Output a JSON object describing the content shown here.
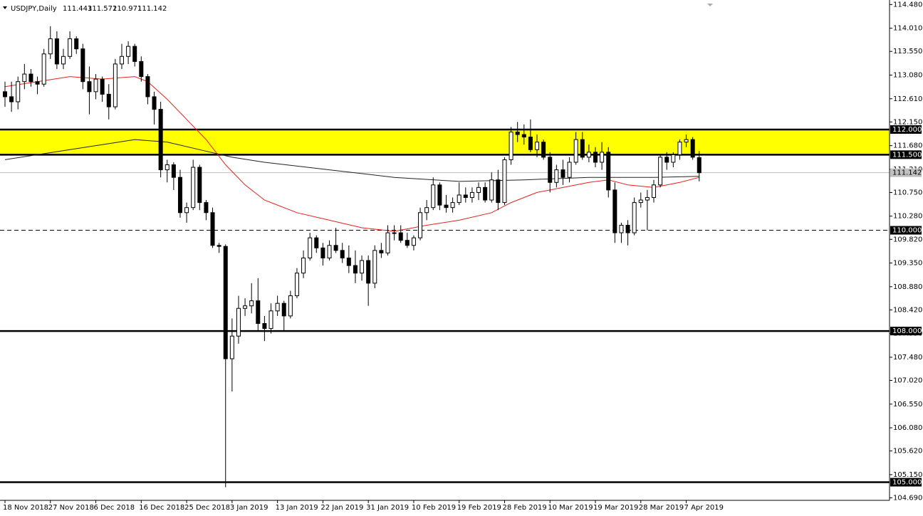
{
  "chart_data": {
    "type": "candlestick",
    "title": "USDJPY,Daily",
    "categories": [
      "18 Nov 2018",
      null,
      null,
      null,
      null,
      null,
      null,
      "27 Nov 2018",
      null,
      null,
      null,
      null,
      null,
      null,
      "6 Dec 2018",
      null,
      null,
      null,
      null,
      null,
      null,
      "16 Dec 2018",
      null,
      null,
      null,
      null,
      null,
      null,
      "25 Dec 2018",
      null,
      null,
      null,
      null,
      null,
      null,
      "3 Jan 2019",
      null,
      null,
      null,
      null,
      null,
      null,
      "13 Jan 2019",
      null,
      null,
      null,
      null,
      null,
      null,
      "22 Jan 2019",
      null,
      null,
      null,
      null,
      null,
      null,
      "31 Jan 2019",
      null,
      null,
      null,
      null,
      null,
      null,
      "10 Feb 2019",
      null,
      null,
      null,
      null,
      null,
      null,
      "19 Feb 2019",
      null,
      null,
      null,
      null,
      null,
      null,
      "28 Feb 2019",
      null,
      null,
      null,
      null,
      null,
      null,
      "10 Mar 2019",
      null,
      null,
      null,
      null,
      null,
      null,
      "19 Mar 2019",
      null,
      null,
      null,
      null,
      null,
      null,
      "28 Mar 2019",
      null,
      null,
      null,
      null,
      null,
      null,
      "7 Apr 2019",
      null,
      null
    ],
    "open": [
      112.75,
      112.65,
      112.55,
      112.95,
      113.1,
      112.95,
      112.9,
      113.5,
      113.8,
      113.3,
      113.45,
      113.8,
      113.6,
      112.95,
      112.75,
      113.0,
      112.7,
      112.45,
      113.3,
      113.45,
      113.65,
      113.35,
      113.05,
      112.65,
      112.4,
      111.2,
      111.3,
      111.05,
      110.35,
      110.45,
      111.25,
      110.55,
      110.35,
      109.7,
      109.68,
      107.45,
      107.9,
      108.45,
      108.5,
      108.6,
      108.15,
      108.05,
      108.4,
      108.55,
      108.3,
      108.7,
      109.15,
      109.45,
      109.85,
      109.65,
      109.45,
      109.7,
      109.6,
      109.45,
      109.3,
      109.15,
      109.4,
      108.95,
      109.6,
      109.55,
      109.95,
      109.95,
      109.8,
      109.7,
      109.85,
      110.35,
      110.45,
      110.9,
      110.5,
      110.45,
      110.55,
      110.7,
      110.65,
      110.75,
      110.85,
      110.6,
      111.0,
      110.55,
      111.4,
      111.95,
      111.9,
      111.85,
      111.6,
      111.75,
      111.45,
      110.95,
      111.2,
      111.05,
      111.35,
      111.8,
      111.45,
      111.55,
      111.35,
      111.55,
      110.8,
      109.95,
      110.1,
      109.95,
      110.55,
      110.6,
      110.65,
      110.9,
      111.45,
      111.35,
      111.5,
      111.75,
      111.8,
      111.443
    ],
    "high": [
      112.95,
      112.95,
      113.05,
      113.3,
      113.2,
      113.05,
      113.6,
      114.05,
      113.95,
      113.6,
      113.95,
      113.85,
      113.7,
      113.25,
      113.1,
      113.05,
      112.9,
      113.4,
      113.7,
      113.75,
      113.7,
      113.45,
      113.1,
      112.75,
      112.55,
      111.4,
      111.35,
      111.2,
      110.55,
      111.4,
      111.3,
      110.6,
      110.45,
      109.75,
      109.72,
      108.25,
      108.7,
      108.65,
      108.95,
      109.05,
      108.3,
      108.55,
      108.7,
      108.6,
      108.8,
      109.25,
      109.6,
      109.95,
      109.9,
      109.75,
      109.8,
      110.05,
      109.75,
      109.7,
      109.6,
      109.5,
      109.5,
      109.7,
      109.75,
      110.1,
      110.1,
      110.1,
      109.95,
      109.9,
      110.45,
      110.6,
      111.05,
      110.95,
      110.7,
      110.65,
      110.95,
      110.85,
      110.85,
      110.95,
      110.95,
      111.15,
      111.2,
      111.45,
      112.05,
      112.15,
      112.1,
      112.2,
      111.9,
      111.8,
      111.55,
      111.3,
      111.4,
      111.45,
      111.95,
      111.95,
      111.7,
      111.65,
      111.75,
      111.65,
      110.95,
      110.15,
      110.2,
      110.65,
      110.75,
      110.8,
      111.0,
      111.5,
      111.55,
      111.55,
      111.8,
      111.9,
      111.85,
      111.572
    ],
    "low": [
      112.45,
      112.35,
      112.4,
      112.8,
      112.85,
      112.7,
      112.85,
      113.4,
      113.2,
      113.2,
      113.4,
      113.5,
      112.8,
      112.3,
      112.6,
      112.55,
      112.2,
      112.4,
      113.2,
      113.3,
      113.25,
      112.95,
      112.5,
      112.1,
      111.05,
      110.95,
      110.8,
      110.25,
      110.15,
      110.4,
      110.4,
      110.2,
      109.65,
      109.55,
      104.9,
      106.8,
      107.75,
      108.3,
      108.35,
      108.0,
      107.8,
      107.95,
      108.3,
      108.0,
      108.25,
      108.65,
      109.05,
      109.4,
      109.55,
      109.3,
      109.4,
      109.55,
      109.35,
      109.15,
      108.95,
      109.0,
      108.5,
      108.85,
      109.45,
      109.5,
      109.8,
      109.75,
      109.65,
      109.6,
      109.8,
      110.2,
      110.4,
      110.4,
      110.35,
      110.35,
      110.5,
      110.55,
      110.55,
      110.6,
      110.55,
      110.55,
      110.4,
      110.5,
      111.3,
      111.75,
      111.7,
      111.55,
      111.45,
      111.4,
      110.75,
      110.85,
      110.9,
      110.95,
      111.3,
      111.4,
      111.35,
      111.25,
      111.2,
      110.65,
      109.75,
      109.75,
      109.7,
      109.9,
      110.45,
      110.0,
      110.55,
      110.85,
      111.2,
      111.25,
      111.4,
      111.65,
      111.4,
      110.971
    ],
    "close": [
      112.65,
      112.55,
      112.95,
      113.1,
      112.95,
      112.9,
      113.5,
      113.8,
      113.3,
      113.45,
      113.8,
      113.6,
      112.95,
      112.75,
      113.0,
      112.7,
      112.45,
      113.3,
      113.45,
      113.65,
      113.35,
      113.05,
      112.65,
      112.4,
      111.2,
      111.3,
      111.05,
      110.35,
      110.45,
      111.25,
      110.55,
      110.35,
      109.7,
      109.68,
      107.45,
      107.9,
      108.45,
      108.5,
      108.6,
      108.15,
      108.05,
      108.4,
      108.55,
      108.3,
      108.7,
      109.15,
      109.45,
      109.85,
      109.65,
      109.45,
      109.7,
      109.6,
      109.45,
      109.3,
      109.15,
      109.4,
      108.95,
      109.6,
      109.55,
      109.95,
      109.95,
      109.8,
      109.7,
      109.85,
      110.35,
      110.45,
      110.9,
      110.5,
      110.45,
      110.55,
      110.7,
      110.65,
      110.75,
      110.85,
      110.6,
      111.0,
      110.55,
      111.4,
      111.95,
      111.9,
      111.85,
      111.6,
      111.75,
      111.45,
      110.95,
      111.2,
      111.05,
      111.35,
      111.8,
      111.45,
      111.55,
      111.35,
      111.55,
      110.8,
      109.95,
      110.1,
      109.95,
      110.55,
      110.6,
      110.65,
      110.9,
      111.45,
      111.35,
      111.5,
      111.75,
      111.8,
      111.45,
      111.142
    ],
    "lines": [
      {
        "color": "#e8201c",
        "x": [
          0,
          5,
          10,
          15,
          20,
          22,
          25,
          28,
          31,
          34,
          37,
          40,
          45,
          50,
          55,
          60,
          65,
          70,
          75,
          78,
          82,
          86,
          90,
          93,
          96,
          100,
          104,
          107
        ],
        "values": [
          112.85,
          112.95,
          113.05,
          113.0,
          113.05,
          112.95,
          112.6,
          112.2,
          111.8,
          111.3,
          110.9,
          110.6,
          110.35,
          110.2,
          110.05,
          109.98,
          110.1,
          110.2,
          110.35,
          110.55,
          110.75,
          110.85,
          110.95,
          111.0,
          110.9,
          110.85,
          110.95,
          111.05
        ]
      },
      {
        "color": "#222222",
        "x": [
          0,
          10,
          15,
          20,
          25,
          30,
          35,
          40,
          50,
          60,
          70,
          80,
          90,
          100,
          107
        ],
        "values": [
          111.4,
          111.6,
          111.7,
          111.8,
          111.75,
          111.6,
          111.45,
          111.35,
          111.2,
          111.05,
          110.97,
          111.0,
          111.05,
          111.05,
          111.07
        ]
      }
    ],
    "zone": {
      "from": 111.5,
      "to": 112,
      "color": "#ffff00"
    },
    "levels": [
      {
        "value": 112,
        "label": "112.000",
        "dashed": false
      },
      {
        "value": 111.5,
        "label": "111.500",
        "dashed": false
      },
      {
        "value": 110,
        "label": "110.000",
        "dashed": true
      },
      {
        "value": 108,
        "label": "108.000",
        "dashed": false
      },
      {
        "value": 105,
        "label": "105.000",
        "dashed": false
      }
    ],
    "current_price": {
      "value": 111.142,
      "label": "111.142"
    },
    "ylim": [
      104.64,
      114.57
    ],
    "yticks": [
      {
        "value": 114.48,
        "label": "114.480"
      },
      {
        "value": 114.01,
        "label": "114.010"
      },
      {
        "value": 113.55,
        "label": "113.550"
      },
      {
        "value": 113.08,
        "label": "113.080"
      },
      {
        "value": 112.61,
        "label": "112.610"
      },
      {
        "value": 112.15,
        "label": "112.150"
      },
      {
        "value": 111.68,
        "label": "111.680"
      },
      {
        "value": 111.21,
        "label": "111.210"
      },
      {
        "value": 110.75,
        "label": "110.750"
      },
      {
        "value": 110.28,
        "label": "110.280"
      },
      {
        "value": 109.82,
        "label": "109.820"
      },
      {
        "value": 109.35,
        "label": "109.350"
      },
      {
        "value": 108.88,
        "label": "108.880"
      },
      {
        "value": 108.42,
        "label": "108.420"
      },
      {
        "value": 107.95,
        "label": "107.950"
      },
      {
        "value": 107.48,
        "label": "107.480"
      },
      {
        "value": 107.02,
        "label": "107.020"
      },
      {
        "value": 106.55,
        "label": "106.550"
      },
      {
        "value": 106.08,
        "label": "106.080"
      },
      {
        "value": 105.62,
        "label": "105.620"
      },
      {
        "value": 105.15,
        "label": "105.150"
      },
      {
        "value": 104.69,
        "label": "104.690"
      }
    ]
  }
}
